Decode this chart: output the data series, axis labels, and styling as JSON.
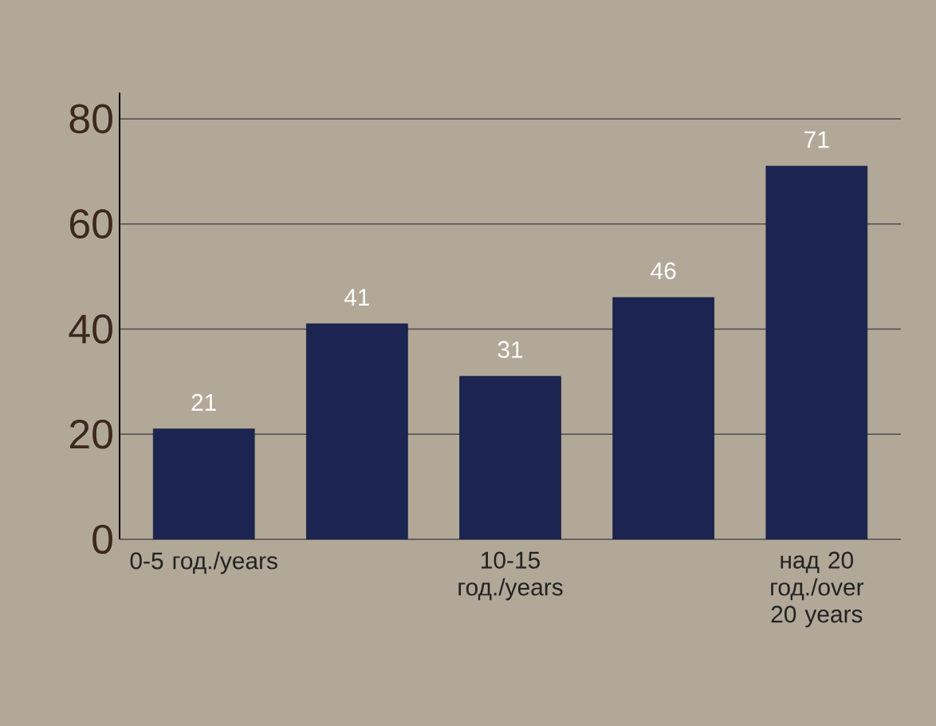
{
  "chart_data": {
    "type": "bar",
    "categories": [
      "0-5 год./years",
      null,
      "10-15 год./years",
      null,
      "над 20 год./over 20 years"
    ],
    "values": [
      21,
      41,
      31,
      46,
      71
    ],
    "color": "#1c2552",
    "ylim": [
      0,
      85
    ],
    "yticks": [
      0,
      20,
      40,
      60,
      80
    ],
    "grid": "y",
    "data_labels": true
  }
}
